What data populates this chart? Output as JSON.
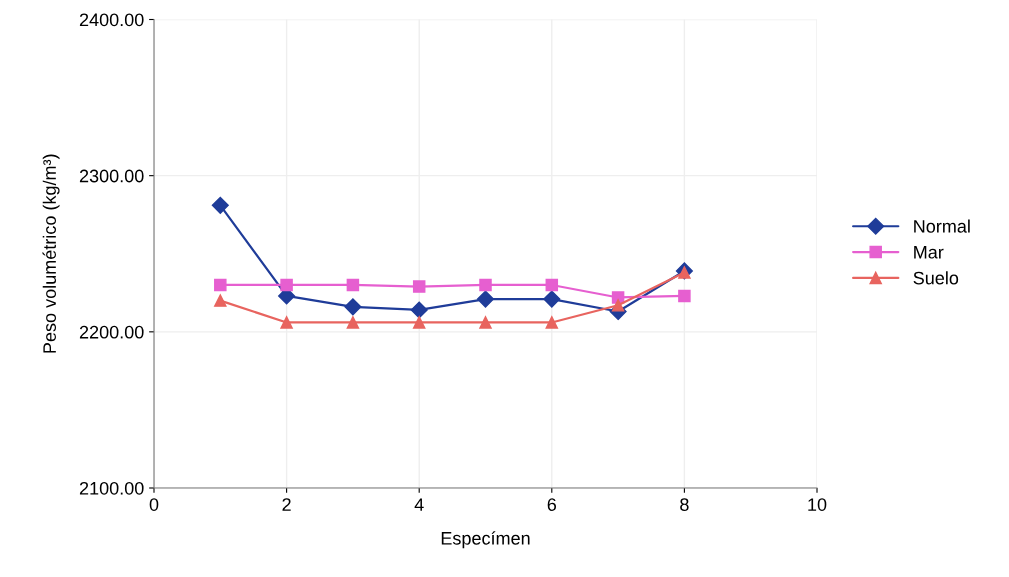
{
  "chart_data": {
    "type": "line",
    "xlabel": "Especímen",
    "ylabel": "Peso volumétrico (kg/m³)",
    "x": [
      1,
      2,
      3,
      4,
      5,
      6,
      7,
      8
    ],
    "series": [
      {
        "name": "Normal",
        "color": "#1f3c99",
        "marker": "diamond",
        "values": [
          2281,
          2223,
          2216,
          2214,
          2221,
          2221,
          2213,
          2239
        ]
      },
      {
        "name": "Mar",
        "color": "#e65fd0",
        "marker": "square",
        "values": [
          2230,
          2230,
          2230,
          2229,
          2230,
          2230,
          2222,
          2223
        ]
      },
      {
        "name": "Suelo",
        "color": "#e8645f",
        "marker": "triangle",
        "values": [
          2220,
          2206,
          2206,
          2206,
          2206,
          2206,
          2217,
          2238
        ]
      }
    ],
    "xlim": [
      0,
      10
    ],
    "xticks": [
      0,
      2,
      4,
      6,
      8,
      10
    ],
    "ylim": [
      2100,
      2400
    ],
    "yticks": [
      {
        "value": 2100,
        "label": "2100.00"
      },
      {
        "value": 2200,
        "label": "2200.00"
      },
      {
        "value": 2300,
        "label": "2300.00"
      },
      {
        "value": 2400,
        "label": "2400.00"
      }
    ],
    "grid": true,
    "legend": "right",
    "line_style": "solid"
  }
}
